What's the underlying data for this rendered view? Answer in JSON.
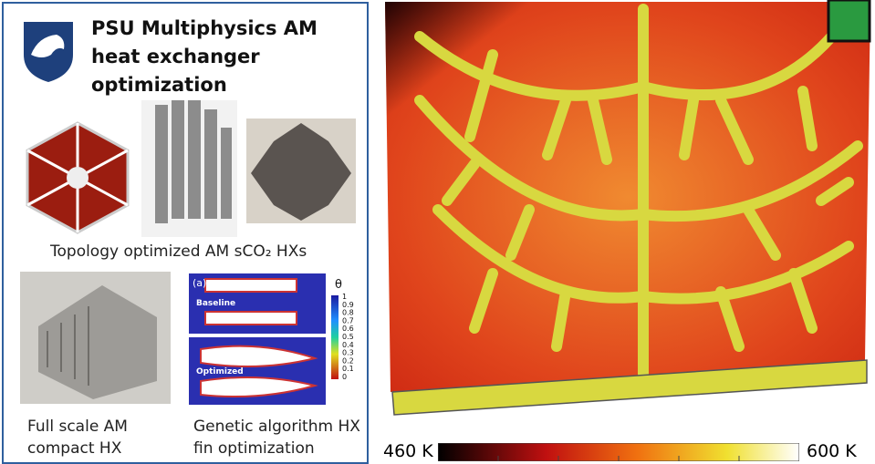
{
  "left_panel": {
    "title": "PSU Multiphysics AM heat exchanger optimization",
    "topology_caption": "Topology optimized AM sCO₂ HXs",
    "compact_caption": "Full scale AM compact HX",
    "fin_caption": "Genetic algorithm HX fin optimization",
    "inset": {
      "panel_label": "(a)",
      "symbol": "θ",
      "baseline_label": "Baseline",
      "optimized_label": "Optimized",
      "scale_labels": [
        1,
        0.9,
        0.8,
        0.7,
        0.6,
        0.5,
        0.4,
        0.3,
        0.2,
        0.1,
        0
      ]
    }
  },
  "right_panel": {
    "colorbar_min_label": "460 K",
    "colorbar_max_label": "600 K"
  }
}
